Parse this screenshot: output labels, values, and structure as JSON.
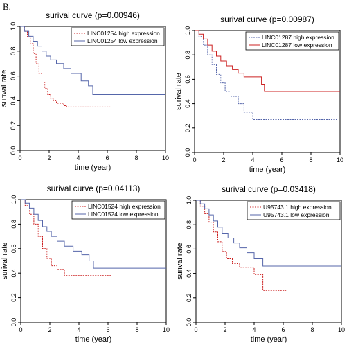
{
  "figure": {
    "panel_label": "B."
  },
  "chart_data": [
    {
      "type": "line",
      "title": "surival curve (p=0.00946)",
      "xlabel": "time (year)",
      "ylabel": "surival rate",
      "xlim": [
        0,
        10
      ],
      "ylim": [
        0,
        1
      ],
      "xticks": [
        "0",
        "2",
        "4",
        "6",
        "8",
        "10"
      ],
      "yticks": [
        "0.0",
        "0.2",
        "0.4",
        "0.6",
        "0.8",
        "1.0"
      ],
      "legend": "top-right",
      "series": [
        {
          "name": "LINC01254 high expression",
          "color": "#cc2222",
          "style": "dotted",
          "x": [
            0,
            0.3,
            0.5,
            0.7,
            0.9,
            1.1,
            1.3,
            1.5,
            1.7,
            1.9,
            2.1,
            2.3,
            2.5,
            3.0,
            3.2,
            6.2
          ],
          "y": [
            1.0,
            0.96,
            0.92,
            0.86,
            0.78,
            0.7,
            0.62,
            0.55,
            0.5,
            0.45,
            0.42,
            0.4,
            0.38,
            0.36,
            0.35,
            0.35
          ]
        },
        {
          "name": "LINC01254 low expression",
          "color": "#5566aa",
          "style": "solid",
          "x": [
            0,
            0.3,
            0.6,
            0.9,
            1.2,
            1.5,
            1.8,
            2.1,
            2.5,
            3.0,
            3.5,
            4.2,
            4.7,
            5.0,
            10
          ],
          "y": [
            1.0,
            0.96,
            0.92,
            0.88,
            0.84,
            0.8,
            0.76,
            0.73,
            0.7,
            0.66,
            0.62,
            0.56,
            0.52,
            0.45,
            0.45
          ]
        }
      ]
    },
    {
      "type": "line",
      "title": "surival curve (p=0.00987)",
      "xlabel": "time (year)",
      "ylabel": "surival rate",
      "xlim": [
        0,
        10
      ],
      "ylim": [
        0,
        1
      ],
      "xticks": [
        "0",
        "2",
        "4",
        "6",
        "8",
        "10"
      ],
      "yticks": [
        "0.0",
        "0.2",
        "0.4",
        "0.6",
        "0.8",
        "1.0"
      ],
      "legend": "top-right",
      "series": [
        {
          "name": "LINC01287 high expression",
          "color": "#5566aa",
          "style": "dotted",
          "x": [
            0,
            0.3,
            0.6,
            0.9,
            1.2,
            1.5,
            1.8,
            2.1,
            2.5,
            3.0,
            3.4,
            4.0,
            9.8
          ],
          "y": [
            1.0,
            0.95,
            0.88,
            0.8,
            0.72,
            0.64,
            0.57,
            0.5,
            0.46,
            0.4,
            0.33,
            0.27,
            0.27
          ]
        },
        {
          "name": "LINC01287 low expression",
          "color": "#cc2222",
          "style": "solid",
          "x": [
            0,
            0.3,
            0.6,
            0.9,
            1.2,
            1.5,
            1.8,
            2.2,
            2.6,
            3.0,
            3.4,
            4.6,
            4.8,
            10
          ],
          "y": [
            1.0,
            0.97,
            0.93,
            0.88,
            0.83,
            0.79,
            0.75,
            0.71,
            0.68,
            0.65,
            0.62,
            0.56,
            0.5,
            0.5
          ]
        }
      ]
    },
    {
      "type": "line",
      "title": "surival curve (p=0.04113)",
      "xlabel": "time (year)",
      "ylabel": "surival rate",
      "xlim": [
        0,
        10
      ],
      "ylim": [
        0,
        1
      ],
      "xticks": [
        "0",
        "2",
        "4",
        "6",
        "8",
        "10"
      ],
      "yticks": [
        "0.0",
        "0.2",
        "0.4",
        "0.6",
        "0.8",
        "1.0"
      ],
      "legend": "top-right",
      "series": [
        {
          "name": "LINC01524 high expression",
          "color": "#cc2222",
          "style": "dotted",
          "x": [
            0,
            0.3,
            0.6,
            0.9,
            1.2,
            1.5,
            1.8,
            2.1,
            2.5,
            3.0,
            6.2
          ],
          "y": [
            1.0,
            0.95,
            0.88,
            0.8,
            0.7,
            0.6,
            0.52,
            0.46,
            0.43,
            0.38,
            0.38
          ]
        },
        {
          "name": "LINC01524 low expression",
          "color": "#5566aa",
          "style": "solid",
          "x": [
            0,
            0.3,
            0.6,
            0.9,
            1.2,
            1.5,
            1.8,
            2.1,
            2.5,
            3.0,
            3.6,
            4.2,
            4.7,
            5.0,
            10
          ],
          "y": [
            1.0,
            0.97,
            0.93,
            0.88,
            0.83,
            0.78,
            0.74,
            0.7,
            0.66,
            0.62,
            0.58,
            0.55,
            0.5,
            0.44,
            0.44
          ]
        }
      ]
    },
    {
      "type": "line",
      "title": "surival curve (p=0.03418)",
      "xlabel": "time (year)",
      "ylabel": "surival rate",
      "xlim": [
        0,
        10
      ],
      "ylim": [
        0,
        1
      ],
      "xticks": [
        "0",
        "2",
        "4",
        "6",
        "8",
        "10"
      ],
      "yticks": [
        "0.0",
        "0.2",
        "0.4",
        "0.6",
        "0.8",
        "1.0"
      ],
      "legend": "top-right",
      "series": [
        {
          "name": "U95743.1 high expression",
          "color": "#cc2222",
          "style": "dotted",
          "x": [
            0,
            0.3,
            0.6,
            0.9,
            1.2,
            1.5,
            1.8,
            2.1,
            2.5,
            3.0,
            4.0,
            4.6,
            6.2
          ],
          "y": [
            1.0,
            0.95,
            0.89,
            0.82,
            0.74,
            0.66,
            0.58,
            0.52,
            0.48,
            0.45,
            0.39,
            0.26,
            0.26
          ]
        },
        {
          "name": "U95743.1 low expression",
          "color": "#5566aa",
          "style": "solid",
          "x": [
            0,
            0.3,
            0.6,
            0.9,
            1.2,
            1.5,
            1.8,
            2.2,
            2.6,
            3.0,
            3.5,
            4.0,
            4.6,
            10
          ],
          "y": [
            1.0,
            0.97,
            0.93,
            0.88,
            0.83,
            0.78,
            0.73,
            0.69,
            0.65,
            0.61,
            0.57,
            0.52,
            0.46,
            0.46
          ]
        }
      ]
    }
  ]
}
